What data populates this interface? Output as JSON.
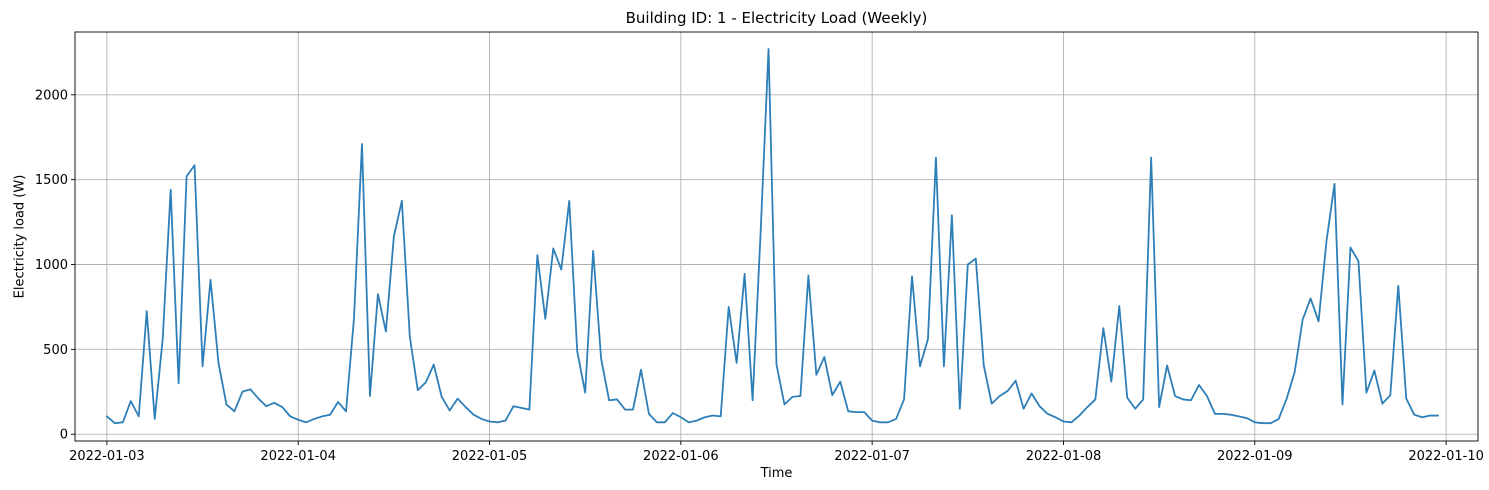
{
  "chart_data": {
    "type": "line",
    "title": "Building ID: 1 - Electricity Load (Weekly)",
    "xlabel": "Time",
    "ylabel": "Electricity load (W)",
    "xlim": [
      "2022-01-02T20:00",
      "2022-01-10T04:00"
    ],
    "ylim": [
      -40,
      2370
    ],
    "x_ticks": [
      "2022-01-03",
      "2022-01-04",
      "2022-01-05",
      "2022-01-06",
      "2022-01-07",
      "2022-01-08",
      "2022-01-09",
      "2022-01-10"
    ],
    "y_ticks": [
      0,
      500,
      1000,
      1500,
      2000
    ],
    "grid": true,
    "line_color": "#2e7fb8",
    "series": [
      {
        "x_start": "2022-01-03T00:00",
        "x_step_hours": 1,
        "values": [
          105,
          65,
          70,
          195,
          105,
          725,
          90,
          560,
          1440,
          300,
          1520,
          1585,
          400,
          910,
          420,
          175,
          135,
          250,
          265,
          210,
          165,
          185,
          160,
          105,
          85,
          70,
          90,
          105,
          115,
          190,
          135,
          685,
          1710,
          225,
          825,
          605,
          1165,
          1375,
          575,
          260,
          305,
          410,
          220,
          140,
          210,
          160,
          115,
          90,
          75,
          70,
          80,
          165,
          155,
          145,
          1055,
          680,
          1095,
          970,
          1375,
          490,
          245,
          1080,
          445,
          200,
          205,
          145,
          145,
          380,
          120,
          70,
          70,
          125,
          100,
          70,
          80,
          100,
          110,
          105,
          750,
          420,
          945,
          200,
          1180,
          2270,
          410,
          175,
          220,
          225,
          935,
          350,
          455,
          230,
          310,
          135,
          130,
          130,
          80,
          70,
          70,
          90,
          205,
          930,
          400,
          560,
          1630,
          400,
          1290,
          150,
          1000,
          1035,
          405,
          180,
          225,
          255,
          315,
          150,
          240,
          165,
          120,
          100,
          75,
          70,
          110,
          160,
          205,
          625,
          310,
          755,
          215,
          150,
          205,
          1630,
          160,
          405,
          225,
          205,
          200,
          290,
          225,
          120,
          120,
          115,
          105,
          95,
          70,
          65,
          65,
          90,
          210,
          365,
          675,
          800,
          665,
          1140,
          1475,
          175,
          1100,
          1020,
          245,
          375,
          180,
          230,
          875,
          210,
          115,
          100,
          110,
          110
        ]
      }
    ]
  }
}
